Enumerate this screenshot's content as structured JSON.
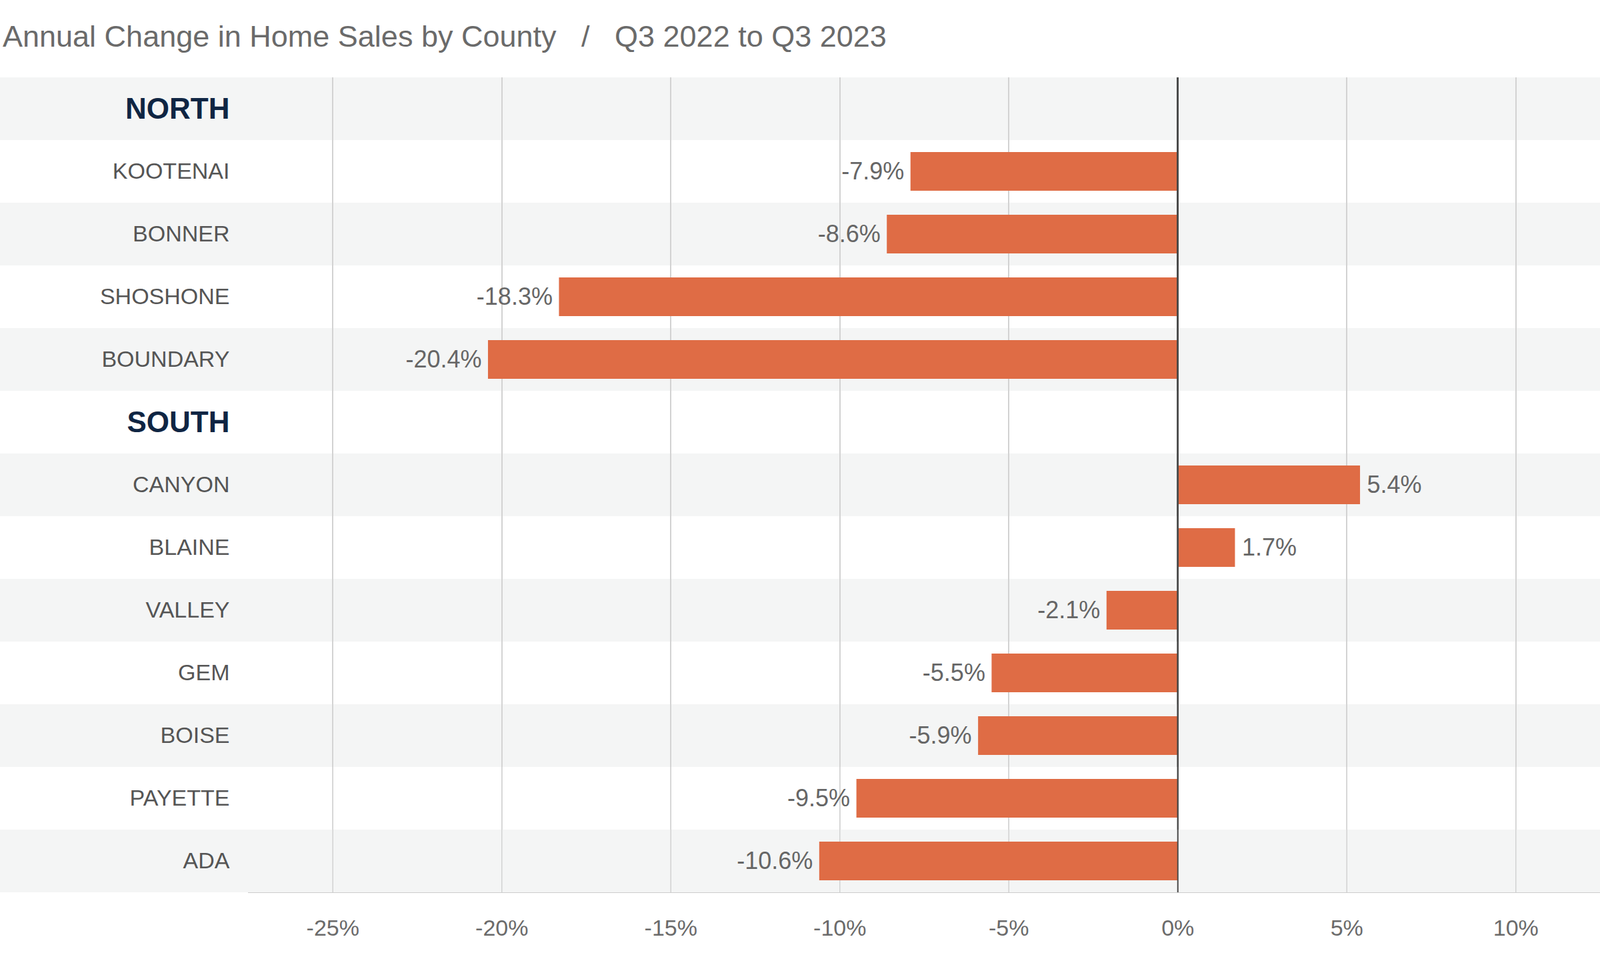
{
  "chart_data": {
    "type": "bar",
    "title": "Annual Change in Home Sales by County   /   Q3 2022 to Q3 2023",
    "orientation": "horizontal",
    "color": "#df6c45",
    "grid": true,
    "data_labels": true,
    "sections": [
      {
        "name": "NORTH",
        "categories": [
          "KOOTENAI",
          "BONNER",
          "SHOSHONE",
          "BOUNDARY"
        ],
        "values": [
          -7.9,
          -8.6,
          -18.3,
          -20.4
        ],
        "value_labels": [
          "-7.9%",
          "-8.6%",
          "-18.3%",
          "-20.4%"
        ]
      },
      {
        "name": "SOUTH",
        "categories": [
          "CANYON",
          "BLAINE",
          "VALLEY",
          "GEM",
          "BOISE",
          "PAYETTE",
          "ADA"
        ],
        "values": [
          5.4,
          1.7,
          -2.1,
          -5.5,
          -5.9,
          -9.5,
          -10.6
        ],
        "value_labels": [
          "5.4%",
          "1.7%",
          "-2.1%",
          "-5.5%",
          "-5.9%",
          "-9.5%",
          "-10.6%"
        ]
      }
    ],
    "xlim": [
      -27.5,
      12.5
    ],
    "xticks": [
      {
        "value": -25,
        "label": "-25%"
      },
      {
        "value": -20,
        "label": "-20%"
      },
      {
        "value": -15,
        "label": "-15%"
      },
      {
        "value": -10,
        "label": "-10%"
      },
      {
        "value": -5,
        "label": "-5%"
      },
      {
        "value": 0,
        "label": "0%"
      },
      {
        "value": 5,
        "label": "5%"
      },
      {
        "value": 10,
        "label": "10%"
      }
    ]
  }
}
